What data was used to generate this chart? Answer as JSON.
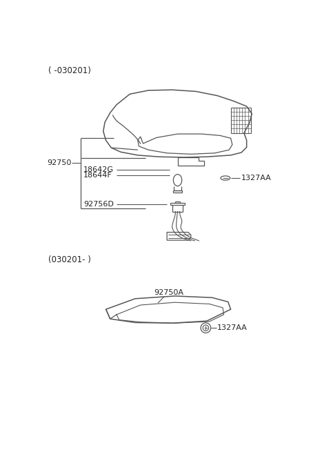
{
  "bg_color": "#ffffff",
  "line_color": "#555555",
  "text_color": "#222222",
  "title_top": "( -030201)",
  "title_bottom": "(030201- )",
  "label_92750": "92750",
  "label_18642G": "18642G",
  "label_18644F": "18644F",
  "label_92756D": "92756D",
  "label_1327AA_top": "1327AA",
  "label_92750A": "92750A",
  "label_1327AA_bot": "1327AA"
}
